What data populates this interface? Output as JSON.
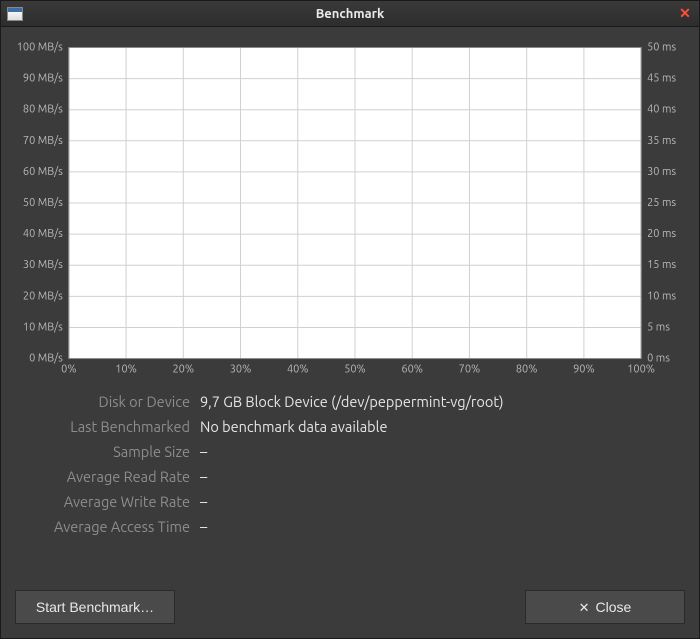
{
  "window": {
    "title": "Benchmark"
  },
  "chart": {
    "type": "line",
    "background_color": "#ffffff",
    "grid_color": "#d0d0d0",
    "axis_label_color": "#b8b8b8",
    "axis_label_fontsize": 11,
    "x": {
      "min": 0,
      "max": 100,
      "tick_step": 10,
      "unit": "%",
      "ticks": [
        "0%",
        "10%",
        "20%",
        "30%",
        "40%",
        "50%",
        "60%",
        "70%",
        "80%",
        "90%",
        "100%"
      ]
    },
    "y_left": {
      "min": 0,
      "max": 100,
      "tick_step": 10,
      "unit": "MB/s",
      "ticks": [
        "0 MB/s",
        "10 MB/s",
        "20 MB/s",
        "30 MB/s",
        "40 MB/s",
        "50 MB/s",
        "60 MB/s",
        "70 MB/s",
        "80 MB/s",
        "90 MB/s",
        "100 MB/s"
      ]
    },
    "y_right": {
      "min": 0,
      "max": 50,
      "tick_step": 5,
      "unit": "ms",
      "ticks": [
        "0 ms",
        "5 ms",
        "10 ms",
        "15 ms",
        "20 ms",
        "25 ms",
        "30 ms",
        "35 ms",
        "40 ms",
        "45 ms",
        "50 ms"
      ]
    },
    "series": []
  },
  "info": {
    "disk_or_device": {
      "label": "Disk or Device",
      "value": "9,7 GB Block Device (/dev/peppermint-vg/root)"
    },
    "last_benchmarked": {
      "label": "Last Benchmarked",
      "value": "No benchmark data available"
    },
    "sample_size": {
      "label": "Sample Size",
      "value": "–"
    },
    "avg_read_rate": {
      "label": "Average Read Rate",
      "value": "–"
    },
    "avg_write_rate": {
      "label": "Average Write Rate",
      "value": "–"
    },
    "avg_access_time": {
      "label": "Average Access Time",
      "value": "–"
    }
  },
  "buttons": {
    "start": "Start Benchmark…",
    "close": "Close"
  }
}
